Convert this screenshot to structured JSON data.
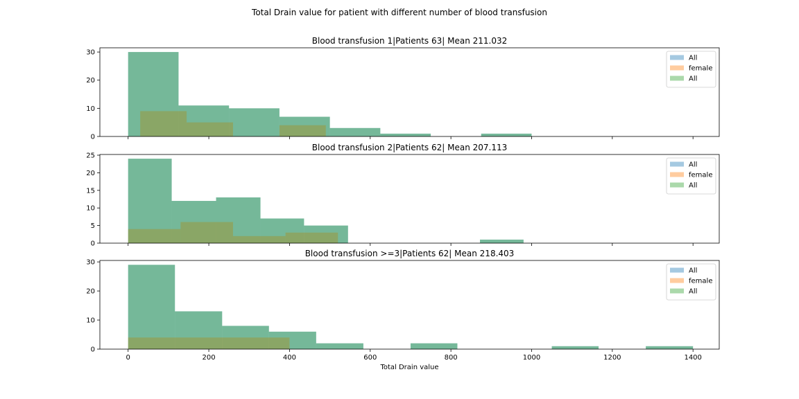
{
  "figure_title": "Total Drain value for patient with different number of blood transfusion",
  "colors": {
    "all_blue": "#1f77b4",
    "female": "#ff7f0e",
    "all_green": "#2ca02c"
  },
  "chart_data": [
    {
      "type": "bar",
      "title": "Blood transfusion 1|Patients 63| Mean 211.032",
      "xlabel": "",
      "ylabel": "",
      "xlim": [
        -70,
        1465
      ],
      "ylim": [
        0,
        31.5
      ],
      "yticks": [
        0,
        10,
        20,
        30
      ],
      "xticks": [
        0,
        200,
        400,
        600,
        800,
        1000,
        1200,
        1400
      ],
      "show_xtick_labels": false,
      "legend": {
        "position": "top-right",
        "entries": [
          "All",
          "female",
          "All"
        ]
      },
      "series": [
        {
          "name": "All",
          "color": "#1f77b4",
          "bins": [
            [
              0,
              125,
              30
            ],
            [
              125,
              250,
              11
            ],
            [
              250,
              375,
              10
            ],
            [
              375,
              500,
              7
            ],
            [
              500,
              625,
              3
            ],
            [
              625,
              750,
              1
            ],
            [
              750,
              875,
              0
            ],
            [
              875,
              1000,
              1
            ]
          ]
        },
        {
          "name": "female",
          "color": "#ff7f0e",
          "bins": [
            [
              30,
              145,
              9
            ],
            [
              145,
              260,
              5
            ],
            [
              260,
              375,
              0
            ],
            [
              375,
              490,
              4
            ]
          ]
        },
        {
          "name": "All",
          "color": "#2ca02c",
          "bins": [
            [
              0,
              125,
              30
            ],
            [
              125,
              250,
              11
            ],
            [
              250,
              375,
              10
            ],
            [
              375,
              500,
              7
            ],
            [
              500,
              625,
              3
            ],
            [
              625,
              750,
              1
            ],
            [
              750,
              875,
              0
            ],
            [
              875,
              1000,
              1
            ]
          ]
        }
      ]
    },
    {
      "type": "bar",
      "title": "Blood transfusion 2|Patients 62| Mean 207.113",
      "xlabel": "",
      "ylabel": "",
      "xlim": [
        -70,
        1465
      ],
      "ylim": [
        0,
        25.2
      ],
      "yticks": [
        0,
        5,
        10,
        15,
        20,
        25
      ],
      "xticks": [
        0,
        200,
        400,
        600,
        800,
        1000,
        1200,
        1400
      ],
      "show_xtick_labels": false,
      "legend": {
        "position": "top-right",
        "entries": [
          "All",
          "female",
          "All"
        ]
      },
      "series": [
        {
          "name": "All",
          "color": "#1f77b4",
          "bins": [
            [
              0,
              108,
              24
            ],
            [
              108,
              218,
              12
            ],
            [
              218,
              328,
              13
            ],
            [
              328,
              436,
              7
            ],
            [
              436,
              545,
              5
            ],
            [
              545,
              655,
              0
            ],
            [
              655,
              763,
              0
            ],
            [
              763,
              872,
              0
            ],
            [
              872,
              980,
              1
            ]
          ]
        },
        {
          "name": "female",
          "color": "#ff7f0e",
          "bins": [
            [
              0,
              130,
              4
            ],
            [
              130,
              260,
              6
            ],
            [
              260,
              390,
              2
            ],
            [
              390,
              520,
              3
            ]
          ]
        },
        {
          "name": "All",
          "color": "#2ca02c",
          "bins": [
            [
              0,
              108,
              24
            ],
            [
              108,
              218,
              12
            ],
            [
              218,
              328,
              13
            ],
            [
              328,
              436,
              7
            ],
            [
              436,
              545,
              5
            ],
            [
              545,
              655,
              0
            ],
            [
              655,
              763,
              0
            ],
            [
              763,
              872,
              0
            ],
            [
              872,
              980,
              1
            ]
          ]
        }
      ]
    },
    {
      "type": "bar",
      "title": "Blood transfusion >=3|Patients 62| Mean 218.403",
      "xlabel": "Total Drain value",
      "ylabel": "",
      "xlim": [
        -70,
        1465
      ],
      "ylim": [
        0,
        30.5
      ],
      "yticks": [
        0,
        10,
        20,
        30
      ],
      "xticks": [
        0,
        200,
        400,
        600,
        800,
        1000,
        1200,
        1400
      ],
      "show_xtick_labels": true,
      "legend": {
        "position": "top-right",
        "entries": [
          "All",
          "female",
          "All"
        ]
      },
      "series": [
        {
          "name": "All",
          "color": "#1f77b4",
          "bins": [
            [
              0,
              116,
              29
            ],
            [
              116,
              233,
              13
            ],
            [
              233,
              349,
              8
            ],
            [
              349,
              466,
              6
            ],
            [
              466,
              583,
              2
            ],
            [
              583,
              700,
              0
            ],
            [
              700,
              816,
              2
            ],
            [
              816,
              933,
              0
            ],
            [
              933,
              1050,
              0
            ],
            [
              1050,
              1166,
              1
            ],
            [
              1166,
              1283,
              0
            ],
            [
              1283,
              1400,
              1
            ]
          ]
        },
        {
          "name": "female",
          "color": "#ff7f0e",
          "bins": [
            [
              0,
              400,
              4
            ]
          ]
        },
        {
          "name": "All",
          "color": "#2ca02c",
          "bins": [
            [
              0,
              116,
              29
            ],
            [
              116,
              233,
              13
            ],
            [
              233,
              349,
              8
            ],
            [
              349,
              466,
              6
            ],
            [
              466,
              583,
              2
            ],
            [
              583,
              700,
              0
            ],
            [
              700,
              816,
              2
            ],
            [
              816,
              933,
              0
            ],
            [
              933,
              1050,
              0
            ],
            [
              1050,
              1166,
              1
            ],
            [
              1166,
              1283,
              0
            ],
            [
              1283,
              1400,
              1
            ]
          ]
        }
      ]
    }
  ]
}
